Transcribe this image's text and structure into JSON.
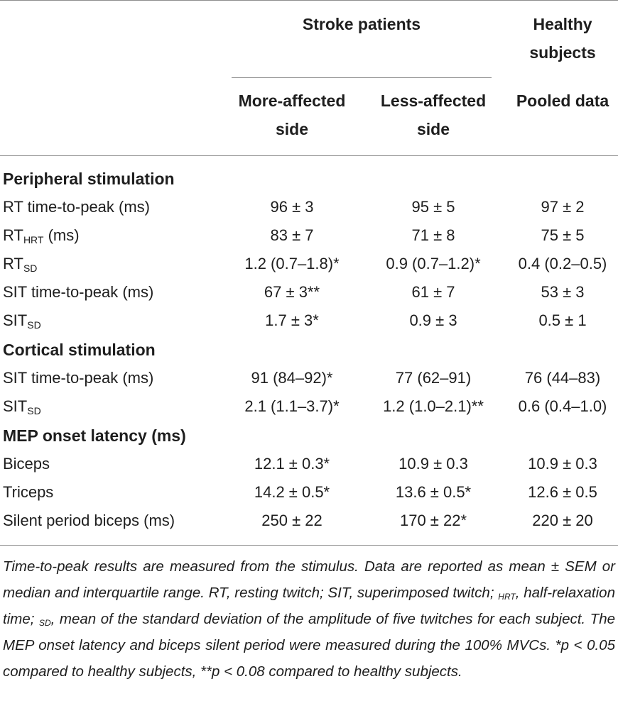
{
  "header": {
    "group_stroke": "Stroke patients",
    "group_healthy_line1": "Healthy",
    "group_healthy_line2": "subjects",
    "col_more_line1": "More-affected",
    "col_more_line2": "side",
    "col_less_line1": "Less-affected",
    "col_less_line2": "side",
    "col_pooled": "Pooled data"
  },
  "sections": {
    "peripheral": "Peripheral stimulation",
    "cortical": "Cortical stimulation",
    "mep": "MEP onset latency (ms)"
  },
  "rows": {
    "rt_ttp": {
      "label": "RT time-to-peak (ms)",
      "more": "96 ± 3",
      "less": "95 ± 5",
      "pooled": "97 ± 2"
    },
    "rt_hrt": {
      "label_main": "RT",
      "label_sub": "HRT",
      "label_rest": " (ms)",
      "more": "83 ± 7",
      "less": "71 ± 8",
      "pooled": "75 ± 5"
    },
    "rt_sd": {
      "label_main": "RT",
      "label_sub": "SD",
      "more": "1.2 (0.7–1.8)*",
      "less": "0.9 (0.7–1.2)*",
      "pooled": "0.4 (0.2–0.5)"
    },
    "sit_ttp_p": {
      "label": "SIT time-to-peak (ms)",
      "more": "67 ± 3**",
      "less": "61 ± 7",
      "pooled": "53 ± 3"
    },
    "sit_sd_p": {
      "label_main": "SIT",
      "label_sub": "SD",
      "more": "1.7 ± 3*",
      "less": "0.9 ± 3",
      "pooled": "0.5 ± 1"
    },
    "sit_ttp_c": {
      "label": "SIT time-to-peak (ms)",
      "more": "91 (84–92)*",
      "less": "77 (62–91)",
      "pooled": "76 (44–83)"
    },
    "sit_sd_c": {
      "label_main": "SIT",
      "label_sub": "SD",
      "more": "2.1 (1.1–3.7)*",
      "less": "1.2 (1.0–2.1)**",
      "pooled": "0.6 (0.4–1.0)"
    },
    "biceps": {
      "label": "Biceps",
      "more": "12.1 ± 0.3*",
      "less": "10.9 ± 0.3",
      "pooled": "10.9 ± 0.3"
    },
    "triceps": {
      "label": "Triceps",
      "more": "14.2 ± 0.5*",
      "less": "13.6 ± 0.5*",
      "pooled": "12.6 ± 0.5"
    },
    "silent": {
      "label": "Silent period biceps (ms)",
      "more": "250 ± 22",
      "less": "170 ± 22*",
      "pooled": "220 ± 20"
    }
  },
  "footnote": {
    "part1": "Time-to-peak results are measured from the stimulus. Data are reported as mean ± SEM or median and interquartile range. RT, resting twitch; SIT, superimposed twitch; ",
    "sub_hrt": "HRT",
    "part2": ", half-relaxation time; ",
    "sub_sd": "SD",
    "part3": ", mean of the standard deviation of the amplitude of five twitches for each subject. The MEP onset latency and biceps silent period were measured during the 100% MVCs. *p < 0.05 compared to healthy subjects, **p < 0.08 compared to healthy subjects."
  }
}
